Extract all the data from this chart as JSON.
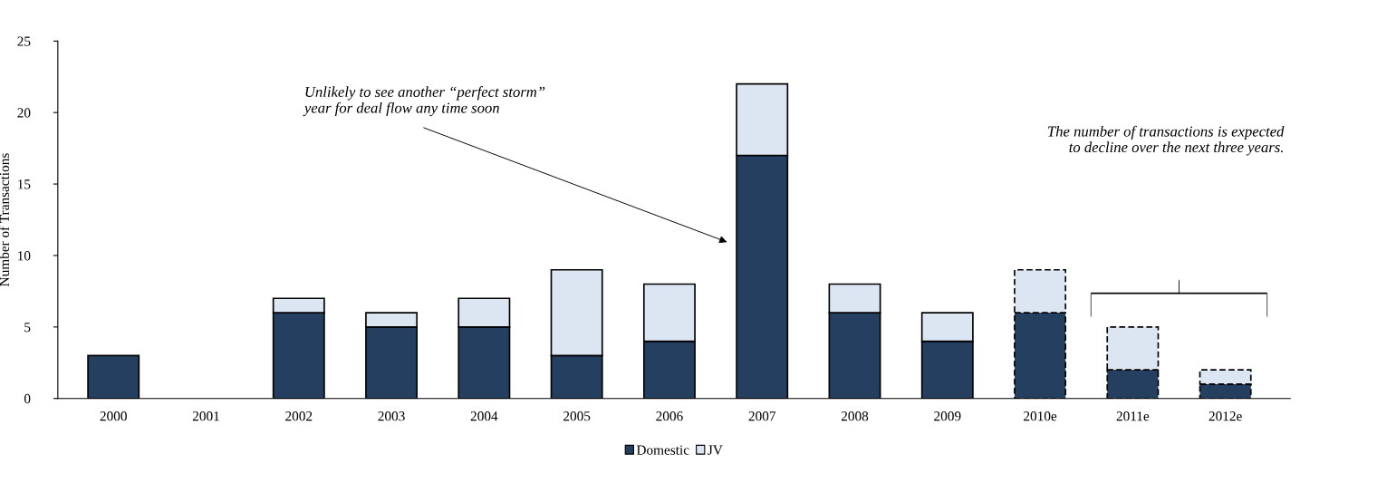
{
  "chart_data": {
    "type": "bar",
    "stacked": true,
    "ylabel": "Number of Transactions",
    "categories": [
      "2000",
      "2001",
      "2002",
      "2003",
      "2004",
      "2005",
      "2006",
      "2007",
      "2008",
      "2009",
      "2010e",
      "2011e",
      "2012e"
    ],
    "series": [
      {
        "name": "Domestic",
        "color": "#243f60",
        "values": [
          3,
          0,
          6,
          5,
          5,
          3,
          4,
          17,
          6,
          4,
          6,
          2,
          1
        ],
        "line_style": [
          "solid",
          "solid",
          "solid",
          "solid",
          "solid",
          "solid",
          "solid",
          "solid",
          "solid",
          "solid",
          "dashed",
          "dashed",
          "dashed"
        ]
      },
      {
        "name": "JV",
        "color": "#dce6f2",
        "values": [
          0,
          0,
          1,
          1,
          2,
          6,
          4,
          5,
          2,
          2,
          3,
          3,
          1
        ],
        "line_style": [
          "solid",
          "solid",
          "solid",
          "solid",
          "solid",
          "solid",
          "solid",
          "solid",
          "solid",
          "solid",
          "dashed",
          "dashed",
          "dashed"
        ]
      }
    ],
    "ylim": [
      0,
      25
    ],
    "yticks": [
      0,
      5,
      10,
      15,
      20,
      25
    ],
    "grid": false,
    "legend": "bottom",
    "annotations": [
      "Unlikely to see another “perfect storm”\nyear for deal flow any time soon",
      "The number of transactions is expected\nto decline over the next three years."
    ]
  }
}
